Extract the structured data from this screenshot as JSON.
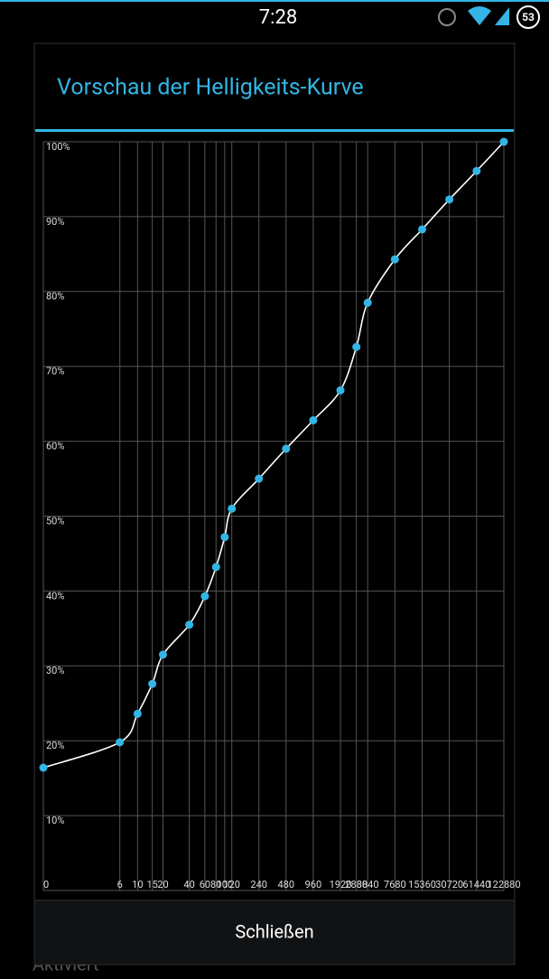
{
  "status_bar": {
    "time": "7:28",
    "battery": "53"
  },
  "background": {
    "label": "Aktiviert"
  },
  "dialog": {
    "title": "Vorschau der Helligkeits-Kurve",
    "button": "Schließen"
  },
  "chart_data": {
    "type": "line",
    "x": [
      0,
      6,
      10,
      15,
      20,
      40,
      60,
      80,
      100,
      120,
      240,
      480,
      960,
      1920,
      2880,
      3840,
      7680,
      15360,
      30720,
      61440,
      122880
    ],
    "series": [
      {
        "color": "#ffffff",
        "marker_color": "#33b5e5",
        "values": [
          16.4,
          19.8,
          23.6,
          27.6,
          31.5,
          35.5,
          39.3,
          43.2,
          47.2,
          51.0,
          55.0,
          59.0,
          62.8,
          66.8,
          72.6,
          78.5,
          84.3,
          88.3,
          92.3,
          96.1,
          100
        ]
      }
    ],
    "xscale": "log",
    "xticks": [
      0,
      6,
      10,
      15,
      20,
      40,
      60,
      80,
      100,
      120,
      240,
      480,
      960,
      1920,
      2880,
      3840,
      7680,
      15360,
      30720,
      61440,
      122880
    ],
    "xlim": [
      0,
      122880
    ],
    "ylim": [
      0,
      100
    ],
    "yticks": [
      {
        "value": 10,
        "label": "10%"
      },
      {
        "value": 20,
        "label": "20%"
      },
      {
        "value": 30,
        "label": "30%"
      },
      {
        "value": 40,
        "label": "40%"
      },
      {
        "value": 50,
        "label": "50%"
      },
      {
        "value": 60,
        "label": "60%"
      },
      {
        "value": 70,
        "label": "70%"
      },
      {
        "value": 80,
        "label": "80%"
      },
      {
        "value": 90,
        "label": "90%"
      },
      {
        "value": 100,
        "label": "100%"
      }
    ],
    "grid": true
  }
}
